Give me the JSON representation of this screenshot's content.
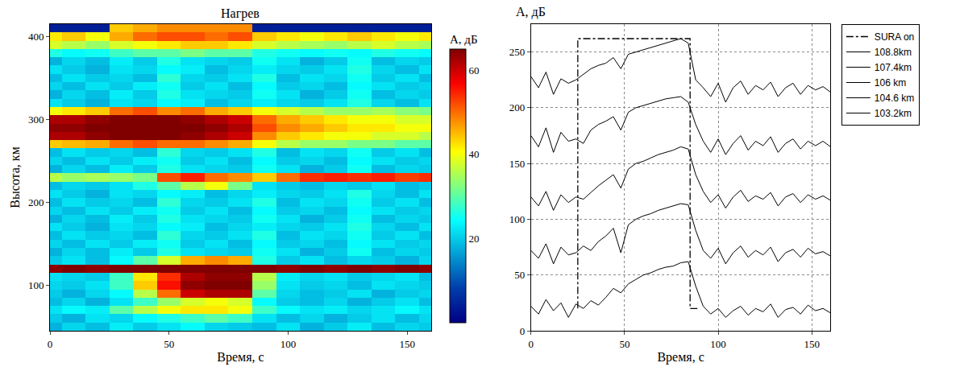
{
  "chart_data": [
    {
      "type": "heatmap",
      "title": "Нагрев",
      "x_label": "Время, с",
      "y_label": "Высота, км",
      "colorbar_title": "А, дБ",
      "x": [
        0,
        10,
        20,
        30,
        40,
        50,
        60,
        70,
        80,
        90,
        100,
        110,
        120,
        130,
        140,
        150,
        160
      ],
      "y": [
        50,
        60,
        70,
        80,
        90,
        100,
        110,
        120,
        130,
        140,
        150,
        160,
        170,
        180,
        190,
        200,
        210,
        220,
        230,
        240,
        250,
        260,
        270,
        280,
        290,
        300,
        310,
        320,
        330,
        340,
        350,
        360,
        370,
        380,
        390,
        400,
        410
      ],
      "z": [
        [
          18,
          21,
          19,
          23,
          20,
          22,
          24,
          21,
          20,
          19,
          22,
          18,
          20,
          23,
          19,
          21,
          20
        ],
        [
          20,
          18,
          22,
          21,
          24,
          26,
          28,
          30,
          28,
          22,
          19,
          21,
          18,
          20,
          22,
          19,
          21
        ],
        [
          22,
          24,
          23,
          30,
          36,
          40,
          42,
          42,
          40,
          28,
          24,
          22,
          23,
          21,
          22,
          24,
          22
        ],
        [
          19,
          21,
          18,
          22,
          28,
          34,
          38,
          40,
          38,
          24,
          20,
          19,
          21,
          18,
          20,
          22,
          19
        ],
        [
          20,
          18,
          21,
          24,
          36,
          50,
          60,
          62,
          62,
          30,
          21,
          19,
          20,
          22,
          18,
          20,
          21
        ],
        [
          21,
          20,
          22,
          28,
          44,
          56,
          64,
          65,
          65,
          34,
          22,
          20,
          21,
          19,
          22,
          21,
          20
        ],
        [
          22,
          21,
          20,
          28,
          42,
          54,
          62,
          64,
          64,
          36,
          23,
          21,
          22,
          20,
          21,
          22,
          19
        ],
        [
          64,
          65,
          64,
          65,
          65,
          65,
          66,
          66,
          65,
          65,
          64,
          65,
          64,
          65,
          64,
          65,
          64
        ],
        [
          20,
          22,
          19,
          24,
          30,
          38,
          46,
          48,
          46,
          26,
          20,
          22,
          19,
          21,
          20,
          18,
          21
        ],
        [
          18,
          21,
          19,
          23,
          20,
          26,
          22,
          21,
          20,
          25,
          22,
          18,
          20,
          25,
          19,
          21,
          20
        ],
        [
          21,
          19,
          22,
          20,
          23,
          25,
          20,
          22,
          19,
          24,
          20,
          21,
          19,
          24,
          22,
          20,
          21
        ],
        [
          19,
          22,
          20,
          21,
          19,
          27,
          21,
          20,
          22,
          26,
          19,
          22,
          21,
          25,
          20,
          22,
          19
        ],
        [
          22,
          20,
          18,
          22,
          21,
          24,
          23,
          19,
          21,
          23,
          21,
          20,
          22,
          26,
          21,
          19,
          22
        ],
        [
          18,
          21,
          19,
          23,
          20,
          26,
          22,
          21,
          20,
          25,
          22,
          18,
          20,
          25,
          19,
          21,
          20
        ],
        [
          21,
          19,
          22,
          20,
          23,
          25,
          20,
          22,
          19,
          24,
          20,
          21,
          19,
          24,
          22,
          20,
          21
        ],
        [
          19,
          22,
          20,
          21,
          19,
          27,
          21,
          20,
          22,
          26,
          19,
          22,
          21,
          25,
          20,
          22,
          19
        ],
        [
          22,
          20,
          18,
          22,
          21,
          24,
          23,
          19,
          21,
          23,
          21,
          20,
          22,
          26,
          21,
          19,
          22
        ],
        [
          19,
          21,
          20,
          22,
          26,
          30,
          36,
          40,
          32,
          22,
          20,
          19,
          21,
          20,
          22,
          19,
          20
        ],
        [
          36,
          34,
          35,
          34,
          32,
          52,
          55,
          50,
          48,
          44,
          50,
          54,
          55,
          54,
          55,
          53,
          54
        ],
        [
          18,
          21,
          19,
          23,
          20,
          26,
          22,
          21,
          20,
          25,
          22,
          18,
          20,
          25,
          19,
          21,
          20
        ],
        [
          21,
          19,
          22,
          20,
          23,
          25,
          20,
          22,
          19,
          24,
          20,
          21,
          19,
          24,
          22,
          20,
          21
        ],
        [
          19,
          22,
          20,
          21,
          19,
          27,
          21,
          20,
          22,
          26,
          19,
          22,
          21,
          25,
          20,
          22,
          19
        ],
        [
          44,
          45,
          46,
          50,
          52,
          50,
          50,
          48,
          46,
          40,
          36,
          34,
          34,
          32,
          32,
          30,
          30
        ],
        [
          62,
          62,
          64,
          66,
          66,
          66,
          64,
          62,
          60,
          48,
          44,
          42,
          40,
          40,
          38,
          38,
          36
        ],
        [
          64,
          64,
          66,
          66,
          66,
          66,
          66,
          64,
          62,
          52,
          48,
          46,
          44,
          42,
          42,
          40,
          40
        ],
        [
          62,
          62,
          64,
          66,
          66,
          66,
          64,
          62,
          60,
          50,
          46,
          44,
          42,
          40,
          40,
          38,
          38
        ],
        [
          40,
          42,
          44,
          50,
          52,
          48,
          50,
          46,
          44,
          40,
          38,
          36,
          34,
          34,
          35,
          33,
          32
        ],
        [
          22,
          20,
          18,
          22,
          21,
          24,
          23,
          19,
          21,
          23,
          21,
          20,
          22,
          26,
          21,
          19,
          22
        ],
        [
          18,
          21,
          19,
          23,
          20,
          26,
          22,
          21,
          20,
          25,
          22,
          18,
          20,
          25,
          19,
          21,
          20
        ],
        [
          21,
          19,
          22,
          20,
          23,
          25,
          20,
          22,
          19,
          24,
          20,
          21,
          19,
          24,
          22,
          20,
          21
        ],
        [
          19,
          22,
          20,
          21,
          19,
          27,
          21,
          20,
          22,
          26,
          19,
          22,
          21,
          25,
          20,
          22,
          19
        ],
        [
          22,
          20,
          18,
          22,
          21,
          24,
          23,
          19,
          21,
          23,
          21,
          20,
          22,
          26,
          21,
          19,
          22
        ],
        [
          18,
          21,
          19,
          23,
          20,
          26,
          22,
          21,
          20,
          25,
          22,
          18,
          20,
          25,
          19,
          21,
          20
        ],
        [
          26,
          24,
          25,
          28,
          30,
          30,
          32,
          30,
          30,
          26,
          25,
          24,
          25,
          24,
          26,
          25,
          24
        ],
        [
          38,
          36,
          34,
          38,
          40,
          42,
          44,
          44,
          42,
          38,
          36,
          35,
          34,
          36,
          38,
          36,
          35
        ],
        [
          42,
          44,
          40,
          46,
          50,
          52,
          52,
          50,
          52,
          44,
          42,
          40,
          42,
          44,
          42,
          40,
          42
        ],
        [
          4,
          4,
          4,
          44,
          46,
          48,
          48,
          48,
          48,
          4,
          4,
          4,
          4,
          4,
          4,
          4,
          4
        ]
      ],
      "zlim": [
        0,
        65
      ],
      "zticks": [
        20,
        40,
        60
      ],
      "xlim": [
        0,
        160
      ],
      "xticks": [
        0,
        50,
        100,
        150
      ],
      "ylim": [
        45,
        415
      ],
      "yticks": [
        100,
        200,
        300,
        400
      ]
    },
    {
      "type": "line",
      "x_label": "Время, с",
      "y_label": "А, дБ",
      "x": [
        0,
        4,
        8,
        12,
        16,
        20,
        24,
        28,
        32,
        36,
        40,
        44,
        48,
        52,
        56,
        60,
        64,
        68,
        72,
        76,
        80,
        84,
        88,
        92,
        96,
        100,
        104,
        108,
        112,
        116,
        120,
        124,
        128,
        132,
        136,
        140,
        144,
        148,
        152,
        156,
        160
      ],
      "series": [
        {
          "name": "SURA on",
          "color": "#000000",
          "line_style": "dashdot",
          "x": [
            25,
            25,
            85,
            85,
            90
          ],
          "values": [
            20,
            262,
            262,
            20,
            20
          ]
        },
        {
          "name": "108.8km",
          "color": "#000000",
          "line_style": "solid",
          "values": [
            228,
            218,
            232,
            212,
            226,
            222,
            225,
            230,
            235,
            238,
            240,
            245,
            235,
            248,
            250,
            252,
            254,
            256,
            258,
            260,
            262,
            258,
            225,
            218,
            210,
            222,
            205,
            218,
            224,
            212,
            220,
            216,
            223,
            210,
            218,
            222,
            212,
            220,
            216,
            219,
            214
          ]
        },
        {
          "name": "107.4km",
          "color": "#000000",
          "line_style": "solid",
          "values": [
            175,
            165,
            182,
            160,
            178,
            170,
            172,
            168,
            180,
            185,
            188,
            192,
            180,
            196,
            200,
            202,
            204,
            206,
            208,
            209,
            210,
            205,
            185,
            170,
            160,
            172,
            158,
            168,
            175,
            162,
            170,
            166,
            174,
            160,
            168,
            172,
            163,
            170,
            166,
            170,
            165
          ]
        },
        {
          "name": "106 km",
          "color": "#000000",
          "line_style": "solid",
          "values": [
            120,
            112,
            125,
            108,
            122,
            115,
            120,
            118,
            124,
            130,
            135,
            140,
            128,
            145,
            150,
            152,
            155,
            158,
            160,
            162,
            165,
            163,
            140,
            125,
            115,
            122,
            110,
            120,
            126,
            116,
            121,
            118,
            124,
            112,
            120,
            123,
            115,
            122,
            118,
            121,
            117
          ]
        },
        {
          "name": "104.6 km",
          "color": "#000000",
          "line_style": "solid",
          "values": [
            72,
            65,
            78,
            60,
            75,
            68,
            70,
            76,
            72,
            80,
            85,
            92,
            70,
            95,
            100,
            103,
            105,
            108,
            110,
            112,
            114,
            113,
            90,
            72,
            65,
            74,
            60,
            70,
            76,
            66,
            72,
            68,
            75,
            62,
            70,
            73,
            66,
            74,
            69,
            71,
            67
          ]
        },
        {
          "name": "103.2km",
          "color": "#000000",
          "line_style": "solid",
          "values": [
            22,
            15,
            28,
            18,
            25,
            12,
            24,
            20,
            27,
            23,
            30,
            38,
            34,
            42,
            46,
            50,
            52,
            55,
            57,
            58,
            61,
            62,
            40,
            22,
            15,
            20,
            12,
            18,
            22,
            14,
            20,
            17,
            24,
            12,
            19,
            21,
            15,
            23,
            18,
            20,
            16
          ]
        }
      ],
      "xlim": [
        0,
        160
      ],
      "xticks": [
        0,
        50,
        100,
        150
      ],
      "ylim": [
        0,
        275
      ],
      "yticks": [
        0,
        50,
        100,
        150,
        200,
        250
      ],
      "grid": true,
      "legend": "right"
    }
  ]
}
